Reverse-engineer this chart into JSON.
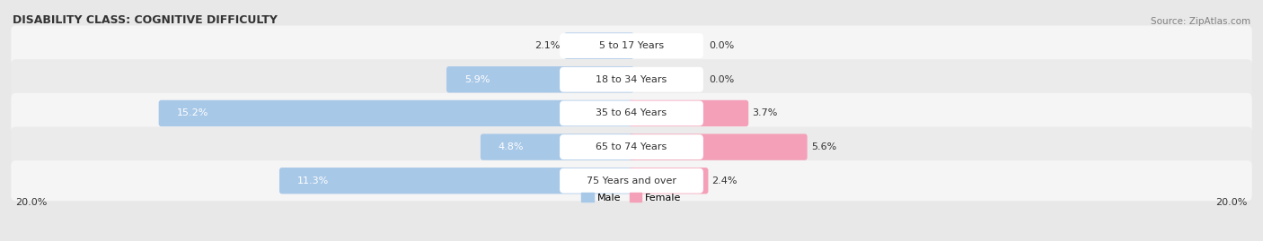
{
  "title": "DISABILITY CLASS: COGNITIVE DIFFICULTY",
  "source": "Source: ZipAtlas.com",
  "categories": [
    "5 to 17 Years",
    "18 to 34 Years",
    "35 to 64 Years",
    "65 to 74 Years",
    "75 Years and over"
  ],
  "male_values": [
    2.1,
    5.9,
    15.2,
    4.8,
    11.3
  ],
  "female_values": [
    0.0,
    0.0,
    3.7,
    5.6,
    2.4
  ],
  "max_val": 20.0,
  "male_color": "#a8c8e8",
  "female_color": "#f4a0b8",
  "bg_color": "#e8e8e8",
  "row_color_light": "#f0f0f0",
  "row_color_dark": "#e0e0e0",
  "label_box_color": "#ffffff",
  "title_fontsize": 9,
  "label_fontsize": 8,
  "source_fontsize": 7.5,
  "value_fontsize": 8
}
